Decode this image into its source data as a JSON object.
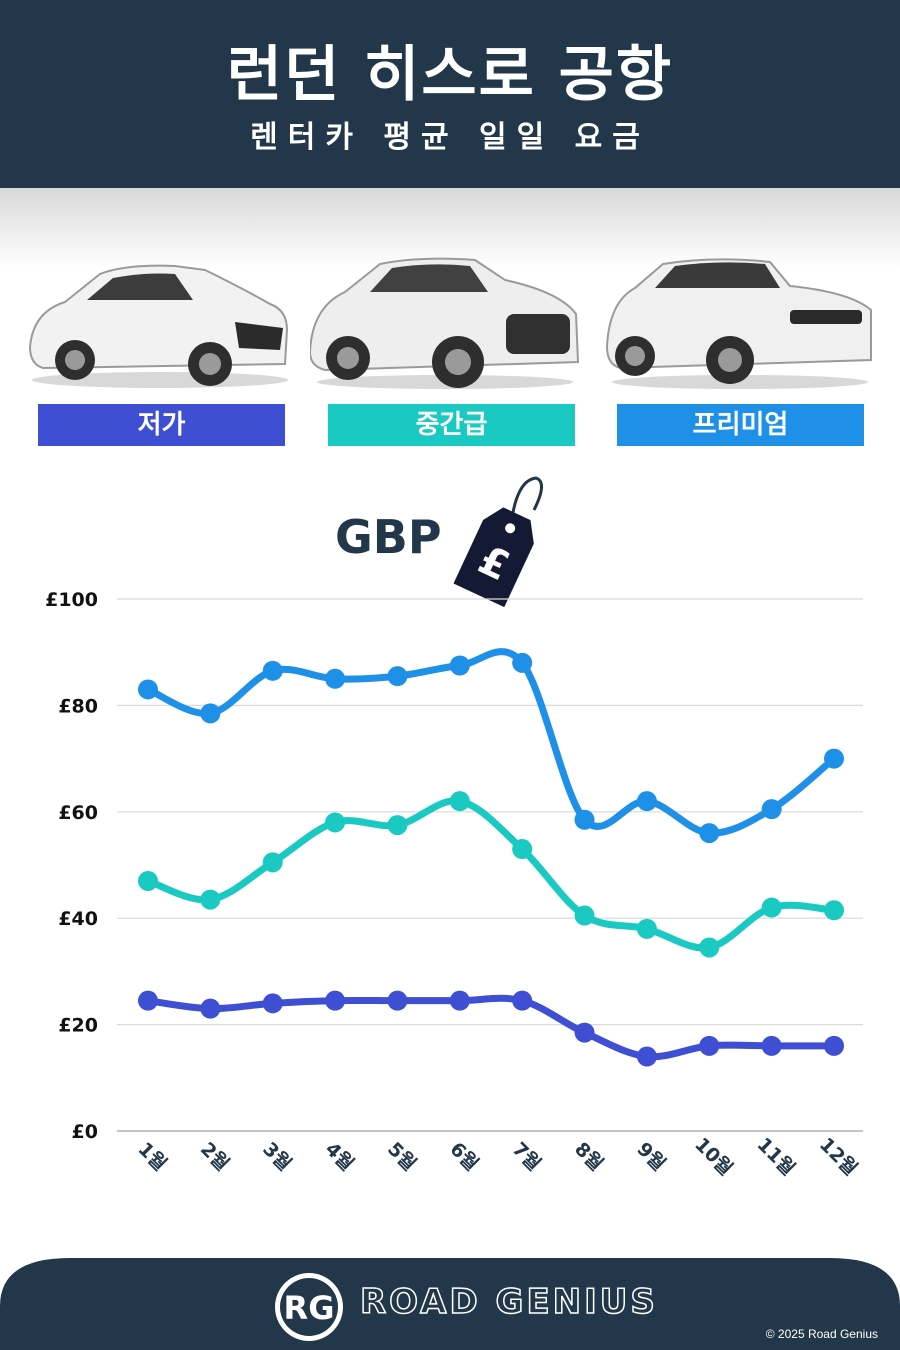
{
  "header": {
    "title": "런던 히스로 공항",
    "subtitle": "렌터카 평균 일일 요금"
  },
  "categories": [
    {
      "label": "저가",
      "color": "#3e4fd4"
    },
    {
      "label": "중간급",
      "color": "#19c9c2"
    },
    {
      "label": "프리미엄",
      "color": "#1e90e8"
    }
  ],
  "currency": {
    "label": "GBP",
    "tag_symbol": "£"
  },
  "chart_data": {
    "type": "line",
    "x": [
      "1월",
      "2월",
      "3월",
      "4월",
      "5월",
      "6월",
      "7월",
      "8월",
      "9월",
      "10월",
      "11월",
      "12월"
    ],
    "series": [
      {
        "name": "프리미엄",
        "color": "#1e90e8",
        "values": [
          83,
          78.5,
          86.5,
          85,
          85.5,
          87.5,
          88,
          58.5,
          62,
          56,
          60.5,
          70
        ]
      },
      {
        "name": "중간급",
        "color": "#19c9c2",
        "values": [
          47,
          43.5,
          50.5,
          58,
          57.5,
          62,
          53,
          40.5,
          38,
          34.5,
          42,
          41.5
        ]
      },
      {
        "name": "저가",
        "color": "#3e4fd4",
        "values": [
          24.5,
          23,
          24,
          24.5,
          24.5,
          24.5,
          24.5,
          18.5,
          14,
          16,
          16,
          16
        ]
      }
    ],
    "ylim": [
      0,
      100
    ],
    "yticks": [
      0,
      20,
      40,
      60,
      80,
      100
    ],
    "ytick_labels": [
      "£0",
      "£20",
      "£40",
      "£60",
      "£80",
      "£100"
    ],
    "grid": true,
    "xlabel": "",
    "ylabel": ""
  },
  "footer": {
    "brand": "ROAD GENIUS",
    "logo_text": "RG",
    "copyright": "© 2025 Road Genius"
  },
  "colors": {
    "navy": "#22384a",
    "grid": "#d9d9d9"
  }
}
